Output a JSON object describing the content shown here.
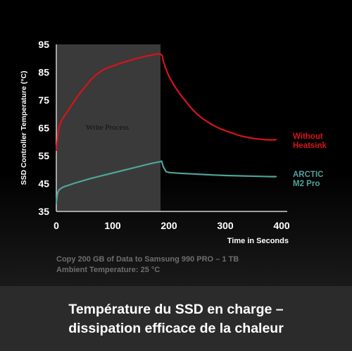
{
  "chart_data": {
    "type": "line",
    "title": "",
    "xlabel": "Time in Seconds",
    "ylabel": "SSD Controller Temperature (°C)",
    "xlim": [
      0,
      410
    ],
    "ylim": [
      35,
      95
    ],
    "xticks": [
      "0",
      "100",
      "200",
      "300",
      "400"
    ],
    "yticks": [
      "35",
      "45",
      "55",
      "65",
      "75",
      "85",
      "95"
    ],
    "grid": false,
    "shaded_region": {
      "label": "Write Process",
      "x_start": 0,
      "x_end": 185,
      "color": "#3a3a3a"
    },
    "series": [
      {
        "name": "Without Heatsink",
        "legend_lines": [
          "Without",
          "Heatsink"
        ],
        "color": "#d5141c",
        "x": [
          0,
          3,
          6,
          10,
          15,
          20,
          30,
          40,
          50,
          60,
          70,
          80,
          90,
          100,
          110,
          120,
          130,
          140,
          150,
          160,
          170,
          180,
          185,
          188,
          190,
          195,
          200,
          210,
          220,
          230,
          240,
          250,
          260,
          270,
          280,
          290,
          300,
          310,
          320,
          330,
          340,
          350,
          360,
          370,
          380,
          385,
          390
        ],
        "y": [
          57,
          63,
          66,
          68,
          69.5,
          71,
          74,
          77,
          79.5,
          82,
          84,
          85.5,
          86.5,
          87.2,
          88,
          88.6,
          89.2,
          89.8,
          90.3,
          90.8,
          91.2,
          91.6,
          91.5,
          91,
          89,
          86,
          83.5,
          80,
          77,
          74.5,
          72,
          70,
          68.3,
          67,
          65.8,
          64.8,
          64,
          63.3,
          62.6,
          62,
          61.6,
          61.2,
          61,
          60.8,
          60.7,
          60.7,
          60.8
        ]
      },
      {
        "name": "ARCTIC M2 Pro",
        "legend_lines": [
          "ARCTIC",
          "M2 Pro"
        ],
        "color": "#4fa39b",
        "x": [
          0,
          2,
          5,
          10,
          15,
          20,
          30,
          40,
          50,
          60,
          70,
          80,
          90,
          100,
          110,
          120,
          130,
          140,
          150,
          160,
          170,
          180,
          185,
          187,
          190,
          195,
          200,
          220,
          240,
          260,
          280,
          300,
          320,
          340,
          360,
          380,
          390
        ],
        "y": [
          38,
          41.5,
          42.8,
          43.5,
          44,
          44.3,
          45,
          45.6,
          46.2,
          46.8,
          47.3,
          47.8,
          48.3,
          48.8,
          49.3,
          49.8,
          50.3,
          50.8,
          51.3,
          51.8,
          52.3,
          52.7,
          52.9,
          53.1,
          51,
          49.3,
          49,
          48.7,
          48.5,
          48.3,
          48.1,
          47.9,
          47.8,
          47.7,
          47.6,
          47.5,
          47.5
        ]
      }
    ],
    "notes": [
      "Copy 200 GB of Data to Samsung 990 PRO  – 1 TB",
      "Ambient Temperature: 25 °C"
    ]
  },
  "banner": {
    "line1": "Température du SSD en charge –",
    "line2": "dissipation efficace de la chaleur"
  }
}
